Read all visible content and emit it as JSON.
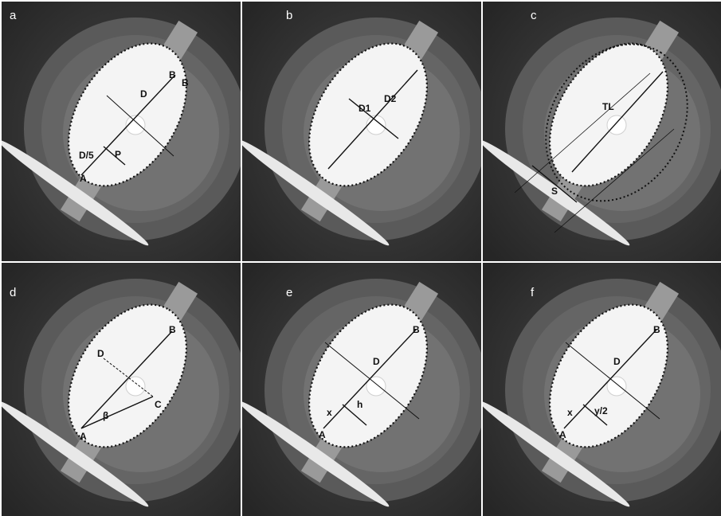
{
  "panels": [
    {
      "id": "a",
      "letter": "a",
      "labels": {
        "a": "A",
        "b": "B",
        "b2": "B",
        "d": "D",
        "d5": "D/5",
        "p": "P"
      }
    },
    {
      "id": "b",
      "letter": "b",
      "labels": {
        "d1": "D1",
        "d2": "D2"
      }
    },
    {
      "id": "c",
      "letter": "c",
      "labels": {
        "tl": "TL",
        "s": "S"
      }
    },
    {
      "id": "d",
      "letter": "d",
      "labels": {
        "a": "A",
        "b": "B",
        "c": "C",
        "d": "D",
        "beta": "β"
      }
    },
    {
      "id": "e",
      "letter": "e",
      "labels": {
        "a": "A",
        "b": "B",
        "d": "D",
        "x": "x",
        "h": "h"
      }
    },
    {
      "id": "f",
      "letter": "f",
      "labels": {
        "a": "A",
        "b": "B",
        "d": "D",
        "x": "x",
        "y2": "y/2"
      }
    }
  ],
  "colors": {
    "background": "#333333",
    "outer_disc": "#5a5a5a",
    "middle_disc": "#6a6a6a",
    "inner_disc": "#7a7a7a",
    "implant": "#f4f4f4",
    "line": "#111111"
  }
}
